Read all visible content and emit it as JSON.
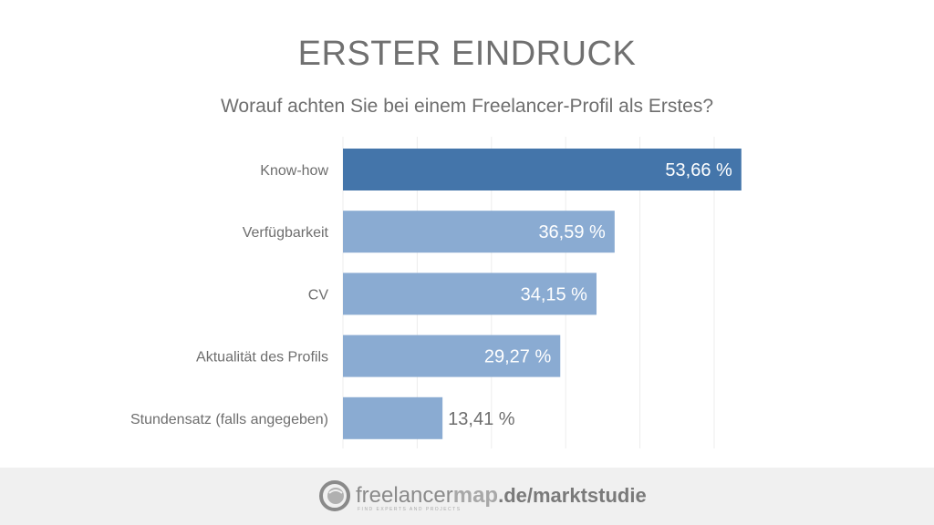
{
  "chart_data": {
    "type": "bar",
    "orientation": "horizontal",
    "title": "ERSTER EINDRUCK",
    "subtitle": "Worauf achten Sie bei einem Freelancer-Profil als Erstes?",
    "categories": [
      "Know-how",
      "Verfügbarkeit",
      "CV",
      "Aktualität des Profils",
      "Stundensatz (falls angegeben)"
    ],
    "values": [
      53.66,
      36.59,
      34.15,
      29.27,
      13.41
    ],
    "data_labels": [
      "53,66 %",
      "36,59 %",
      "34,15 %",
      "29,27 %",
      "13,41 %"
    ],
    "unit": "%",
    "xlim": [
      0,
      60
    ],
    "grid_ticks": [
      0,
      10,
      20,
      30,
      40,
      50
    ],
    "grid": true,
    "legend": "none",
    "colors": {
      "highlight": "#4475aa",
      "default": "#8aabd2",
      "grid": "#ececec"
    }
  },
  "footer": {
    "logo_text_light": "freelancer",
    "logo_text_bold": "map",
    "url_suffix": ".de/marktstudie",
    "tagline": "FIND EXPERTS AND PROJECTS",
    "background": "#f0f0f0"
  }
}
